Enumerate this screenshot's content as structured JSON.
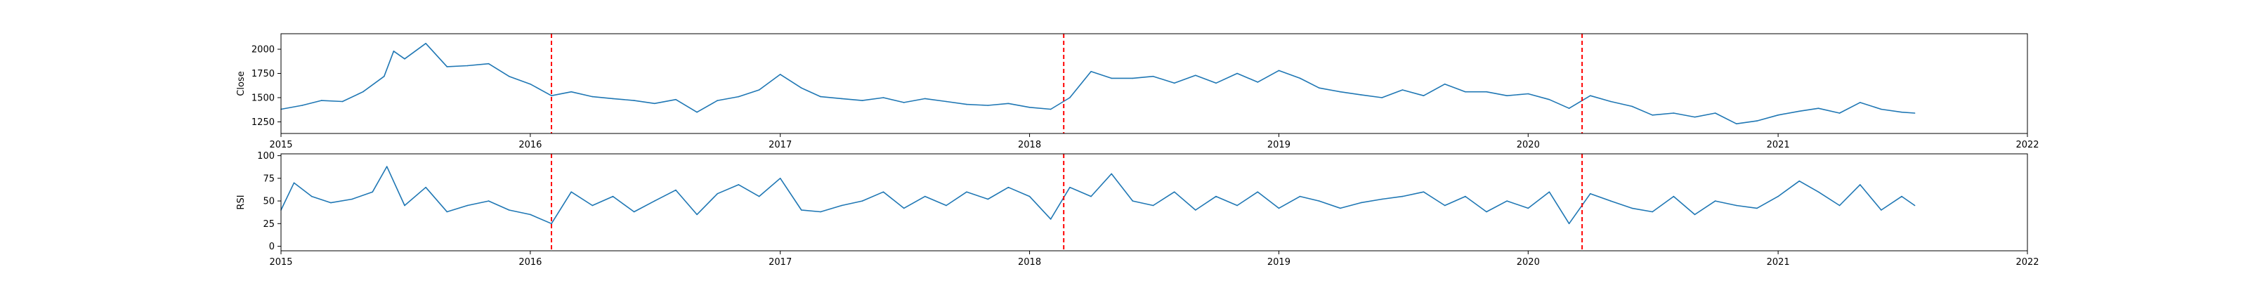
{
  "chart_data": [
    {
      "type": "line",
      "title": "",
      "xlabel": "",
      "ylabel": "Close",
      "x_ticks": [
        "2015",
        "2016",
        "2017",
        "2018",
        "2019",
        "2020",
        "2021",
        "2022"
      ],
      "xlim": [
        "2015-01-01",
        "2022-01-01"
      ],
      "y_ticks": [
        "1250",
        "1500",
        "1750",
        "2000"
      ],
      "ylim": [
        1130,
        2160
      ],
      "grid": false,
      "legend": "none",
      "line_color": "#1f77b4",
      "marker_color": "#ff0000",
      "vertical_markers": [
        "2016-02-01",
        "2018-02-20",
        "2020-03-20"
      ],
      "series": [
        {
          "x": [
            "2015-01-01",
            "2015-02-01",
            "2015-03-01",
            "2015-04-01",
            "2015-05-01",
            "2015-06-01",
            "2015-06-15",
            "2015-07-01",
            "2015-08-01",
            "2015-09-01",
            "2015-10-01",
            "2015-11-01",
            "2015-12-01",
            "2016-01-01",
            "2016-02-01",
            "2016-03-01",
            "2016-04-01",
            "2016-05-01",
            "2016-06-01",
            "2016-07-01",
            "2016-08-01",
            "2016-09-01",
            "2016-10-01",
            "2016-11-01",
            "2016-12-01",
            "2017-01-01",
            "2017-02-01",
            "2017-03-01",
            "2017-04-01",
            "2017-05-01",
            "2017-06-01",
            "2017-07-01",
            "2017-08-01",
            "2017-09-01",
            "2017-10-01",
            "2017-11-01",
            "2017-12-01",
            "2018-01-01",
            "2018-02-01",
            "2018-03-01",
            "2018-04-01",
            "2018-05-01",
            "2018-06-01",
            "2018-07-01",
            "2018-08-01",
            "2018-09-01",
            "2018-10-01",
            "2018-11-01",
            "2018-12-01",
            "2019-01-01",
            "2019-02-01",
            "2019-03-01",
            "2019-04-01",
            "2019-05-01",
            "2019-06-01",
            "2019-07-01",
            "2019-08-01",
            "2019-09-01",
            "2019-10-01",
            "2019-11-01",
            "2019-12-01",
            "2020-01-01",
            "2020-02-01",
            "2020-03-01",
            "2020-04-01",
            "2020-05-01",
            "2020-06-01",
            "2020-07-01",
            "2020-08-01",
            "2020-09-01",
            "2020-10-01",
            "2020-11-01",
            "2020-12-01",
            "2021-01-01",
            "2021-02-01",
            "2021-03-01",
            "2021-04-01",
            "2021-05-01",
            "2021-06-01",
            "2021-07-01",
            "2021-07-20"
          ],
          "values": [
            1380,
            1420,
            1470,
            1460,
            1560,
            1720,
            1980,
            1900,
            2060,
            1820,
            1830,
            1850,
            1720,
            1640,
            1520,
            1560,
            1510,
            1490,
            1470,
            1440,
            1480,
            1350,
            1470,
            1510,
            1580,
            1740,
            1600,
            1510,
            1490,
            1470,
            1500,
            1450,
            1490,
            1460,
            1430,
            1420,
            1440,
            1400,
            1380,
            1500,
            1770,
            1700,
            1700,
            1720,
            1650,
            1730,
            1650,
            1750,
            1660,
            1780,
            1700,
            1600,
            1560,
            1530,
            1500,
            1580,
            1520,
            1640,
            1560,
            1560,
            1520,
            1540,
            1480,
            1390,
            1520,
            1460,
            1410,
            1320,
            1340,
            1300,
            1340,
            1230,
            1260,
            1320,
            1360,
            1390,
            1340,
            1450,
            1380,
            1350,
            1340
          ]
        }
      ]
    },
    {
      "type": "line",
      "title": "",
      "xlabel": "",
      "ylabel": "RSI",
      "x_ticks": [
        "2015",
        "2016",
        "2017",
        "2018",
        "2019",
        "2020",
        "2021",
        "2022"
      ],
      "xlim": [
        "2015-01-01",
        "2022-01-01"
      ],
      "y_ticks": [
        "0",
        "25",
        "50",
        "75",
        "100"
      ],
      "ylim": [
        -5,
        102
      ],
      "grid": false,
      "legend": "none",
      "line_color": "#1f77b4",
      "marker_color": "#ff0000",
      "vertical_markers": [
        "2016-02-01",
        "2018-02-20",
        "2020-03-20"
      ],
      "series": [
        {
          "x": [
            "2015-01-01",
            "2015-01-20",
            "2015-02-15",
            "2015-03-15",
            "2015-04-15",
            "2015-05-15",
            "2015-06-05",
            "2015-07-01",
            "2015-08-01",
            "2015-09-01",
            "2015-10-01",
            "2015-11-01",
            "2015-12-01",
            "2016-01-01",
            "2016-02-01",
            "2016-03-01",
            "2016-04-01",
            "2016-05-01",
            "2016-06-01",
            "2016-07-01",
            "2016-08-01",
            "2016-09-01",
            "2016-10-01",
            "2016-11-01",
            "2016-12-01",
            "2017-01-01",
            "2017-02-01",
            "2017-03-01",
            "2017-04-01",
            "2017-05-01",
            "2017-06-01",
            "2017-07-01",
            "2017-08-01",
            "2017-09-01",
            "2017-10-01",
            "2017-11-01",
            "2017-12-01",
            "2018-01-01",
            "2018-02-01",
            "2018-03-01",
            "2018-04-01",
            "2018-05-01",
            "2018-06-01",
            "2018-07-01",
            "2018-08-01",
            "2018-09-01",
            "2018-10-01",
            "2018-11-01",
            "2018-12-01",
            "2019-01-01",
            "2019-02-01",
            "2019-03-01",
            "2019-04-01",
            "2019-05-01",
            "2019-06-01",
            "2019-07-01",
            "2019-08-01",
            "2019-09-01",
            "2019-10-01",
            "2019-11-01",
            "2019-12-01",
            "2020-01-01",
            "2020-02-01",
            "2020-03-01",
            "2020-04-01",
            "2020-05-01",
            "2020-06-01",
            "2020-07-01",
            "2020-08-01",
            "2020-09-01",
            "2020-10-01",
            "2020-11-01",
            "2020-12-01",
            "2021-01-01",
            "2021-02-01",
            "2021-03-01",
            "2021-04-01",
            "2021-05-01",
            "2021-06-01",
            "2021-07-01",
            "2021-07-20"
          ],
          "values": [
            40,
            70,
            55,
            48,
            52,
            60,
            88,
            45,
            65,
            38,
            45,
            50,
            40,
            35,
            25,
            60,
            45,
            55,
            38,
            50,
            62,
            35,
            58,
            68,
            55,
            75,
            40,
            38,
            45,
            50,
            60,
            42,
            55,
            45,
            60,
            52,
            65,
            55,
            30,
            65,
            55,
            80,
            50,
            45,
            60,
            40,
            55,
            45,
            60,
            42,
            55,
            50,
            42,
            48,
            52,
            55,
            60,
            45,
            55,
            38,
            50,
            42,
            60,
            25,
            58,
            50,
            42,
            38,
            55,
            35,
            50,
            45,
            42,
            55,
            72,
            60,
            45,
            68,
            40,
            55,
            45
          ]
        }
      ]
    }
  ]
}
